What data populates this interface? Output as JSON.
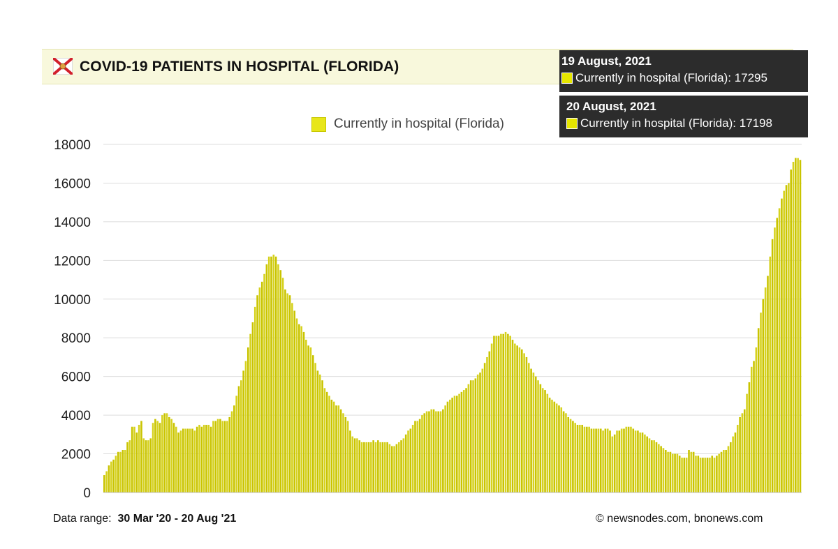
{
  "header": {
    "title": "COVID-19 PATIENTS IN HOSPITAL (FLORIDA)",
    "flag_icon": "florida-flag-icon"
  },
  "tooltips": [
    {
      "date": "19 August, 2021",
      "label": "Currently in hospital (Florida): 17295"
    },
    {
      "date": "20 August, 2021",
      "label": "Currently in hospital (Florida): 17198"
    }
  ],
  "footer": {
    "range_label": "Data range:",
    "range_value": "30 Mar '20  -  20 Aug '21",
    "credit": "© newsnodes.com, bnonews.com"
  },
  "colors": {
    "bar": "#c9c400",
    "bar_light": "#ecec7a",
    "header_bg": "#f8f8dc",
    "tooltip_bg": "#2c2c2c"
  },
  "chart_data": {
    "type": "bar",
    "title": "COVID-19 PATIENTS IN HOSPITAL (FLORIDA)",
    "x_range": [
      "2020-03-30",
      "2021-08-20"
    ],
    "ylim": [
      0,
      18000
    ],
    "yticks": [
      0,
      2000,
      4000,
      6000,
      8000,
      10000,
      12000,
      14000,
      16000,
      18000
    ],
    "grid": true,
    "legend": "top-center",
    "series": [
      {
        "name": "Currently in hospital (Florida)",
        "values": [
          900,
          1100,
          1400,
          1600,
          1700,
          1900,
          2100,
          2100,
          2200,
          2200,
          2600,
          2700,
          3400,
          3400,
          3100,
          3500,
          3700,
          2800,
          2700,
          2700,
          2800,
          3600,
          3800,
          3700,
          3600,
          4000,
          4100,
          4100,
          3900,
          3800,
          3600,
          3400,
          3100,
          3200,
          3300,
          3300,
          3300,
          3300,
          3300,
          3200,
          3400,
          3500,
          3400,
          3500,
          3500,
          3500,
          3400,
          3700,
          3700,
          3800,
          3800,
          3700,
          3700,
          3700,
          3900,
          4200,
          4500,
          5000,
          5500,
          5800,
          6300,
          6800,
          7500,
          8200,
          8800,
          9600,
          10200,
          10600,
          10900,
          11300,
          11800,
          12200,
          12200,
          12300,
          12200,
          11800,
          11500,
          11100,
          10500,
          10300,
          10200,
          9800,
          9400,
          9000,
          8700,
          8600,
          8300,
          7900,
          7600,
          7500,
          7100,
          6700,
          6300,
          6100,
          5800,
          5400,
          5200,
          5000,
          4800,
          4700,
          4500,
          4500,
          4300,
          4100,
          3900,
          3700,
          3200,
          2900,
          2800,
          2800,
          2700,
          2600,
          2600,
          2600,
          2600,
          2600,
          2700,
          2600,
          2700,
          2600,
          2600,
          2600,
          2600,
          2500,
          2400,
          2400,
          2500,
          2600,
          2700,
          2800,
          3000,
          3200,
          3300,
          3500,
          3700,
          3700,
          3800,
          4000,
          4100,
          4200,
          4200,
          4300,
          4300,
          4200,
          4200,
          4200,
          4300,
          4500,
          4700,
          4800,
          4900,
          5000,
          5000,
          5100,
          5200,
          5300,
          5400,
          5600,
          5800,
          5800,
          5900,
          6100,
          6200,
          6400,
          6700,
          7000,
          7300,
          7700,
          8100,
          8100,
          8100,
          8200,
          8200,
          8300,
          8200,
          8100,
          7900,
          7700,
          7600,
          7500,
          7400,
          7200,
          7000,
          6700,
          6400,
          6200,
          6000,
          5800,
          5600,
          5400,
          5300,
          5100,
          4900,
          4800,
          4700,
          4600,
          4500,
          4400,
          4200,
          4100,
          3900,
          3800,
          3700,
          3600,
          3500,
          3500,
          3500,
          3400,
          3400,
          3400,
          3300,
          3300,
          3300,
          3300,
          3300,
          3200,
          3300,
          3300,
          3200,
          2900,
          3000,
          3200,
          3200,
          3300,
          3300,
          3400,
          3400,
          3400,
          3300,
          3200,
          3200,
          3100,
          3100,
          3000,
          2900,
          2800,
          2700,
          2700,
          2600,
          2500,
          2400,
          2300,
          2200,
          2100,
          2100,
          2000,
          2000,
          2000,
          1900,
          1800,
          1800,
          1800,
          2200,
          2100,
          2100,
          1900,
          1900,
          1800,
          1800,
          1800,
          1800,
          1800,
          1900,
          1800,
          1900,
          2000,
          2100,
          2200,
          2200,
          2400,
          2600,
          2900,
          3100,
          3500,
          3900,
          4100,
          4300,
          5100,
          5700,
          6500,
          6800,
          7500,
          8500,
          9300,
          10000,
          10600,
          11200,
          12200,
          13100,
          13700,
          14200,
          14700,
          15200,
          15600,
          15900,
          16000,
          16700,
          17100,
          17300,
          17295,
          17198
        ]
      }
    ]
  }
}
